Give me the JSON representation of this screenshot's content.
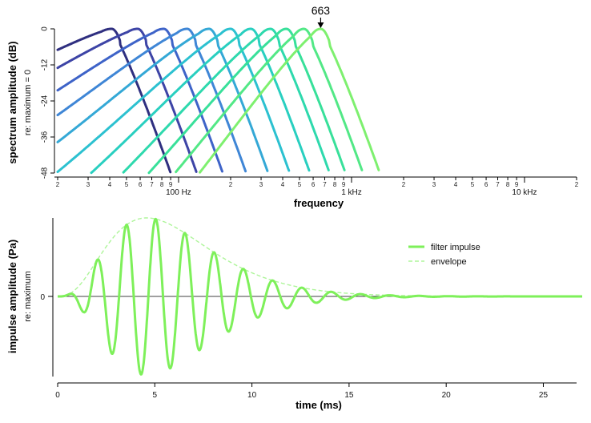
{
  "chart_data": [
    {
      "type": "line",
      "ylabel": "spectrum amplitude (dB)",
      "ysublabel": "re: maximum = 0",
      "xlabel": "frequency",
      "xscale": "log",
      "xlim": [
        20,
        20000
      ],
      "ylim": [
        -48,
        0
      ],
      "yticks": [
        "0",
        "-12",
        "-24",
        "-36",
        "-48"
      ],
      "xtick_major_labels": [
        "100 Hz",
        "1 kHz",
        "10 kHz"
      ],
      "xtick_minor_labels": [
        "2",
        "3",
        "4",
        "5",
        "6",
        "7",
        "8",
        "9",
        "2",
        "3",
        "4",
        "5",
        "6",
        "7",
        "8",
        "9",
        "2",
        "3",
        "4",
        "5",
        "6",
        "7",
        "8",
        "9",
        "2"
      ],
      "annotation": {
        "text": "663",
        "x": 663,
        "y": 0
      },
      "series": [
        {
          "peak": 41,
          "color": "#2f2f80"
        },
        {
          "peak": 58,
          "color": "#3d44a6"
        },
        {
          "peak": 82,
          "color": "#3e63c8"
        },
        {
          "peak": 112,
          "color": "#3f86d6"
        },
        {
          "peak": 150,
          "color": "#34a8d6"
        },
        {
          "peak": 200,
          "color": "#2cc1d0"
        },
        {
          "peak": 262,
          "color": "#29cfc0"
        },
        {
          "peak": 340,
          "color": "#2ed9ad"
        },
        {
          "peak": 420,
          "color": "#38e09a"
        },
        {
          "peak": 530,
          "color": "#52e886"
        },
        {
          "peak": 663,
          "color": "#7ef06f"
        }
      ]
    },
    {
      "type": "line",
      "ylabel": "impulse amplitude (Pa)",
      "ysublabel": "re: maximum",
      "xlabel": "time (ms)",
      "xlim": [
        0,
        27
      ],
      "xticks": [
        "0",
        "5",
        "10",
        "15",
        "20",
        "25"
      ],
      "yticks": [
        "0"
      ],
      "legend": {
        "position": "top-right",
        "entries": [
          "filter impulse",
          "envelope"
        ]
      },
      "impulse": {
        "frequency_hz": 663,
        "envelope_peak_ms": 4.8,
        "envelope_width_ms": 4.2,
        "decay_ms": 3.9
      },
      "colors": {
        "impulse": "#7ef05a",
        "envelope": "#aef59a",
        "zero_line": "#000000"
      }
    }
  ]
}
